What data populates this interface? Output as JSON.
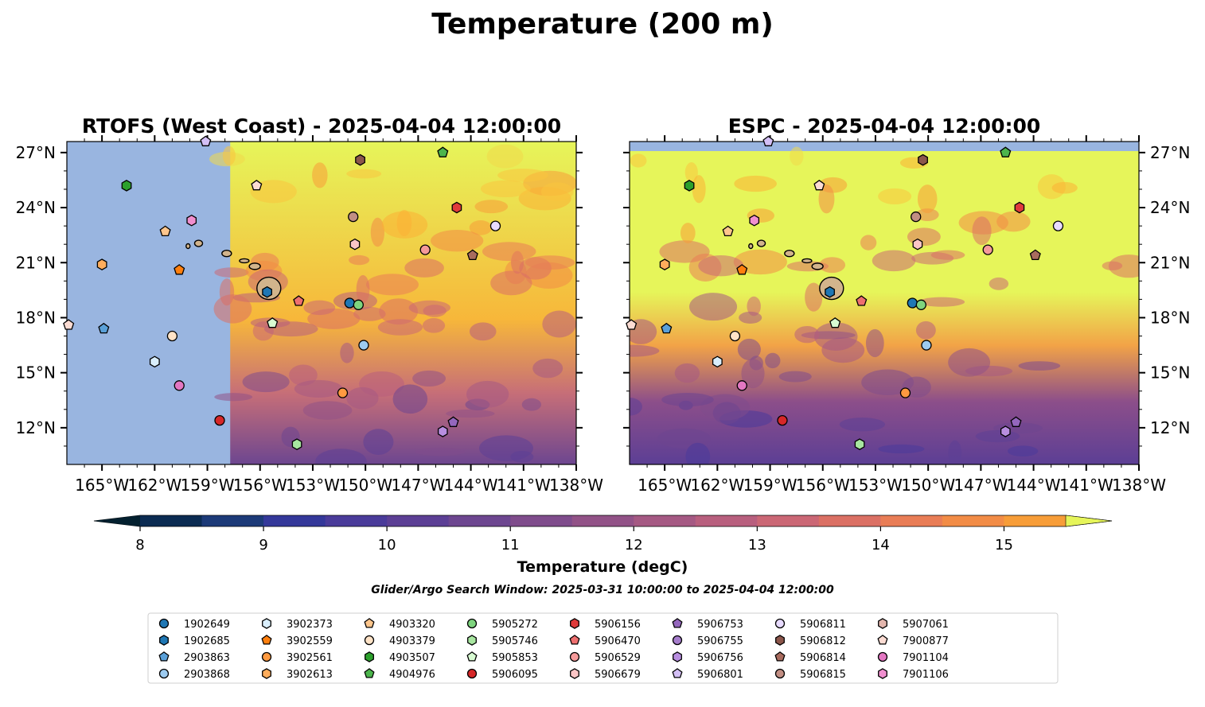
{
  "chart_data": {
    "type": "heatmap",
    "title": "Temperature (200 m)",
    "panels": [
      {
        "title": "RTOFS (West Coast) - 2025-04-04 12:00:00",
        "model_lon_min": -157.7
      },
      {
        "title": "ESPC - 2025-04-04 12:00:00",
        "model_lon_min": -167
      }
    ],
    "extent": {
      "lon": [
        -167,
        -138
      ],
      "lat": [
        10,
        27.6
      ]
    },
    "x_ticks": [
      {
        "v": -165,
        "label": "165°W"
      },
      {
        "v": -162,
        "label": "162°W"
      },
      {
        "v": -159,
        "label": "159°W"
      },
      {
        "v": -156,
        "label": "156°W"
      },
      {
        "v": -153,
        "label": "153°W"
      },
      {
        "v": -150,
        "label": "150°W"
      },
      {
        "v": -147,
        "label": "147°W"
      },
      {
        "v": -144,
        "label": "144°W"
      },
      {
        "v": -141,
        "label": "141°W"
      },
      {
        "v": -138,
        "label": "138°W"
      }
    ],
    "y_ticks": [
      {
        "v": 27,
        "label": "27°N"
      },
      {
        "v": 24,
        "label": "24°N"
      },
      {
        "v": 21,
        "label": "21°N"
      },
      {
        "v": 18,
        "label": "18°N"
      },
      {
        "v": 15,
        "label": "15°N"
      },
      {
        "v": 12,
        "label": "12°N"
      }
    ],
    "colorbar": {
      "label": "Temperature (degC)",
      "min": 8,
      "max": 15.5,
      "step": 0.5,
      "ticks": [
        8,
        9,
        10,
        11,
        12,
        13,
        14,
        15
      ],
      "colors": [
        "#03202f",
        "#0b2b52",
        "#1c3a78",
        "#34389a",
        "#4a3b9a",
        "#5c3f95",
        "#6d4690",
        "#7f4c8c",
        "#925287",
        "#a55983",
        "#b85f7e",
        "#cb6775",
        "#db7064",
        "#e97d56",
        "#f28c46",
        "#f79d38",
        "#fbb035",
        "#f9c43e",
        "#f0d84a",
        "#e6f55a"
      ]
    },
    "subtitle": "Glider/Argo Search Window: 2025-03-31 10:00:00 to 2025-04-04 12:00:00",
    "floats": [
      {
        "id": "1902649",
        "marker": "circle",
        "color": "#1f77b4",
        "lon": -150.9,
        "lat": 18.8
      },
      {
        "id": "1902685",
        "marker": "hexagon",
        "color": "#1f77b4",
        "lon": -155.6,
        "lat": 19.4
      },
      {
        "id": "2903863",
        "marker": "pentagon",
        "color": "#5aa0d8",
        "lon": -164.9,
        "lat": 17.4
      },
      {
        "id": "2903868",
        "marker": "circle",
        "color": "#9dcbf0",
        "lon": -150.1,
        "lat": 16.5
      },
      {
        "id": "3902373",
        "marker": "hexagon",
        "color": "#d9eefc",
        "lon": -162.0,
        "lat": 15.6
      },
      {
        "id": "3902559",
        "marker": "pentagon",
        "color": "#ff7f0e",
        "lon": -160.6,
        "lat": 20.6
      },
      {
        "id": "3902561",
        "marker": "circle",
        "color": "#ff9a40",
        "lon": -151.3,
        "lat": 13.9
      },
      {
        "id": "3902613",
        "marker": "hexagon",
        "color": "#ffad5c",
        "lon": -165.0,
        "lat": 20.9
      },
      {
        "id": "4903320",
        "marker": "pentagon",
        "color": "#ffc68c",
        "lon": -161.4,
        "lat": 22.7
      },
      {
        "id": "4903379",
        "marker": "circle",
        "color": "#ffe3c7",
        "lon": -161.0,
        "lat": 17.0
      },
      {
        "id": "4903507",
        "marker": "hexagon",
        "color": "#2ca02c",
        "lon": -163.6,
        "lat": 25.2
      },
      {
        "id": "4904976",
        "marker": "pentagon",
        "color": "#4cb54c",
        "lon": -145.6,
        "lat": 27.0
      },
      {
        "id": "5905272",
        "marker": "circle",
        "color": "#7ed47e",
        "lon": -150.4,
        "lat": 18.7
      },
      {
        "id": "5905746",
        "marker": "hexagon",
        "color": "#a8e6a0",
        "lon": -153.9,
        "lat": 11.1
      },
      {
        "id": "5905853",
        "marker": "pentagon",
        "color": "#d8fcd2",
        "lon": -155.3,
        "lat": 17.7
      },
      {
        "id": "5906095",
        "marker": "circle",
        "color": "#d62728",
        "lon": -158.3,
        "lat": 12.4
      },
      {
        "id": "5906156",
        "marker": "hexagon",
        "color": "#e03b3b",
        "lon": -144.8,
        "lat": 24.0
      },
      {
        "id": "5906470",
        "marker": "pentagon",
        "color": "#ee6f6f",
        "lon": -153.8,
        "lat": 18.9
      },
      {
        "id": "5906529",
        "marker": "circle",
        "color": "#f59a9a",
        "lon": -146.6,
        "lat": 21.7
      },
      {
        "id": "5906679",
        "marker": "hexagon",
        "color": "#fcc6c6",
        "lon": -150.6,
        "lat": 22.0
      },
      {
        "id": "5906753",
        "marker": "pentagon",
        "color": "#9467bd",
        "lon": -145.0,
        "lat": 12.3
      },
      {
        "id": "5906755",
        "marker": "circle",
        "color": "#a67dcc",
        "lon": null,
        "lat": null
      },
      {
        "id": "5906756",
        "marker": "hexagon",
        "color": "#b88ee0",
        "lon": -145.6,
        "lat": 11.8
      },
      {
        "id": "5906801",
        "marker": "pentagon",
        "color": "#d3bff5",
        "lon": -159.1,
        "lat": 27.6
      },
      {
        "id": "5906811",
        "marker": "circle",
        "color": "#e8dbff",
        "lon": -142.6,
        "lat": 23.0
      },
      {
        "id": "5906812",
        "marker": "hexagon",
        "color": "#8c564b",
        "lon": -150.3,
        "lat": 26.6
      },
      {
        "id": "5906814",
        "marker": "pentagon",
        "color": "#a86b5e",
        "lon": -143.9,
        "lat": 21.4
      },
      {
        "id": "5906815",
        "marker": "circle",
        "color": "#c28e83",
        "lon": -150.7,
        "lat": 23.5
      },
      {
        "id": "5907061",
        "marker": "hexagon",
        "color": "#e3b6ad",
        "lon": null,
        "lat": null
      },
      {
        "id": "7900877",
        "marker": "pentagon",
        "color": "#fcdcd3",
        "lon": -156.2,
        "lat": 25.2
      },
      {
        "id": "7901104",
        "marker": "circle",
        "color": "#e377c2",
        "lon": -160.6,
        "lat": 14.3
      },
      {
        "id": "7901106",
        "marker": "hexagon",
        "color": "#f08fcf",
        "lon": -159.9,
        "lat": 23.3
      }
    ],
    "extra_markers": [
      {
        "marker": "pentagon",
        "color": "#fcdcd3",
        "lon": -166.9,
        "lat": 17.6
      }
    ]
  }
}
